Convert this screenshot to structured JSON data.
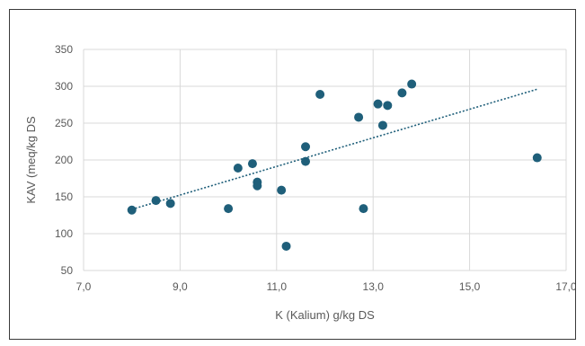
{
  "chart_data": {
    "type": "scatter",
    "xlabel": "K (Kalium) g/kg DS",
    "ylabel": "KAV (meq/kg DS",
    "xlim": [
      7,
      17
    ],
    "ylim": [
      50,
      350
    ],
    "x_ticks": [
      7,
      9,
      11,
      13,
      15,
      17
    ],
    "x_tick_labels": [
      "7,0",
      "9,0",
      "11,0",
      "13,0",
      "15,0",
      "17,0"
    ],
    "y_ticks": [
      50,
      100,
      150,
      200,
      250,
      300,
      350
    ],
    "y_tick_labels": [
      "50",
      "100",
      "150",
      "200",
      "250",
      "300",
      "350"
    ],
    "grid": true,
    "trendline": {
      "type": "linear",
      "style": "dotted",
      "x": [
        8.0,
        16.4
      ],
      "y": [
        133,
        296
      ]
    },
    "series": [
      {
        "color": "#1f5f7a",
        "points": [
          {
            "x": 8.0,
            "y": 132
          },
          {
            "x": 8.5,
            "y": 145
          },
          {
            "x": 8.8,
            "y": 141
          },
          {
            "x": 10.0,
            "y": 134
          },
          {
            "x": 10.2,
            "y": 189
          },
          {
            "x": 10.5,
            "y": 195
          },
          {
            "x": 10.6,
            "y": 170
          },
          {
            "x": 10.6,
            "y": 165
          },
          {
            "x": 11.1,
            "y": 159
          },
          {
            "x": 11.2,
            "y": 83
          },
          {
            "x": 11.6,
            "y": 218
          },
          {
            "x": 11.6,
            "y": 198
          },
          {
            "x": 11.9,
            "y": 289
          },
          {
            "x": 12.7,
            "y": 258
          },
          {
            "x": 12.8,
            "y": 134
          },
          {
            "x": 13.1,
            "y": 276
          },
          {
            "x": 13.2,
            "y": 247
          },
          {
            "x": 13.3,
            "y": 274
          },
          {
            "x": 13.6,
            "y": 291
          },
          {
            "x": 13.8,
            "y": 303
          },
          {
            "x": 16.4,
            "y": 203
          }
        ]
      }
    ]
  }
}
